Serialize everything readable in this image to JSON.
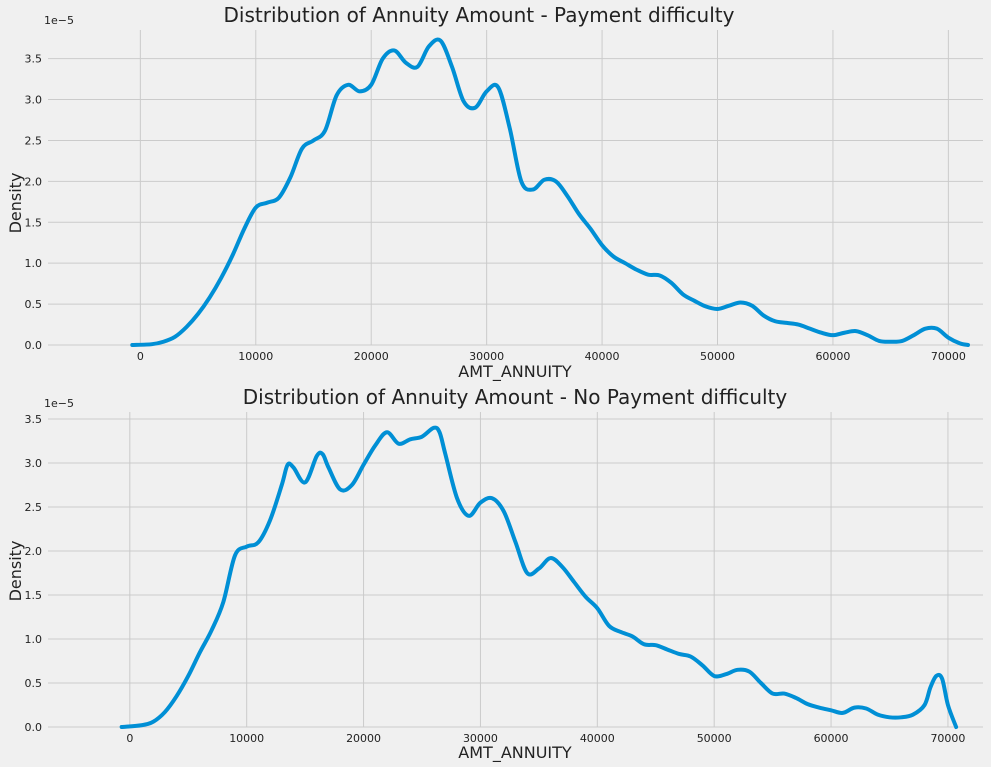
{
  "chart_data": [
    {
      "type": "line",
      "title": "Distribution of Annuity Amount - Payment difficulty",
      "xlabel": "AMT_ANNUITY",
      "ylabel": "Density",
      "y_offset_label": "1e−5",
      "xlim": [
        -8000,
        73000
      ],
      "ylim": [
        0,
        3.85
      ],
      "x_ticks": [
        0,
        10000,
        20000,
        30000,
        40000,
        50000,
        60000,
        70000
      ],
      "y_ticks": [
        0.0,
        0.5,
        1.0,
        1.5,
        2.0,
        2.5,
        3.0,
        3.5
      ],
      "grid": true,
      "line_color": "#008fd5",
      "series": [
        {
          "x": [
            -700,
            1000,
            2000,
            3000,
            4000,
            5000,
            6000,
            7000,
            8000,
            9000,
            10000,
            11000,
            12000,
            13000,
            14000,
            15000,
            16000,
            17000,
            18000,
            19000,
            20000,
            21000,
            22000,
            23000,
            24000,
            25000,
            26000,
            27000,
            28000,
            29000,
            30000,
            31000,
            32000,
            33000,
            34000,
            35000,
            36000,
            37000,
            38000,
            39000,
            40000,
            41000,
            42000,
            43000,
            44000,
            45000,
            46000,
            47000,
            48000,
            49000,
            50000,
            51000,
            52000,
            53000,
            54000,
            55000,
            56000,
            57000,
            58000,
            59000,
            60000,
            61000,
            62000,
            63000,
            64000,
            65000,
            66000,
            67000,
            68000,
            69000,
            70000,
            71000,
            71700
          ],
          "y": [
            0.0,
            0.01,
            0.04,
            0.1,
            0.22,
            0.38,
            0.58,
            0.82,
            1.1,
            1.42,
            1.68,
            1.74,
            1.8,
            2.05,
            2.4,
            2.5,
            2.62,
            3.05,
            3.18,
            3.1,
            3.18,
            3.5,
            3.6,
            3.45,
            3.4,
            3.65,
            3.72,
            3.4,
            2.98,
            2.9,
            3.1,
            3.15,
            2.65,
            2.0,
            1.9,
            2.02,
            2.0,
            1.82,
            1.6,
            1.42,
            1.22,
            1.08,
            1.0,
            0.92,
            0.86,
            0.85,
            0.76,
            0.62,
            0.54,
            0.47,
            0.44,
            0.48,
            0.52,
            0.48,
            0.36,
            0.29,
            0.27,
            0.25,
            0.2,
            0.15,
            0.12,
            0.15,
            0.17,
            0.12,
            0.05,
            0.04,
            0.05,
            0.12,
            0.2,
            0.2,
            0.09,
            0.02,
            0.0
          ]
        }
      ]
    },
    {
      "type": "line",
      "title": "Distribution of Annuity Amount - No Payment difficulty",
      "xlabel": "AMT_ANNUITY",
      "ylabel": "Density",
      "y_offset_label": "1e−5",
      "xlim": [
        -7000,
        73000
      ],
      "ylim": [
        0,
        3.58
      ],
      "x_ticks": [
        0,
        10000,
        20000,
        30000,
        40000,
        50000,
        60000,
        70000
      ],
      "y_ticks": [
        0.0,
        0.5,
        1.0,
        1.5,
        2.0,
        2.5,
        3.0,
        3.5
      ],
      "grid": true,
      "line_color": "#008fd5",
      "series": [
        {
          "x": [
            -700,
            1000,
            2000,
            3000,
            4000,
            5000,
            6000,
            7000,
            8000,
            9000,
            10000,
            11000,
            12000,
            13000,
            13500,
            14000,
            15000,
            16000,
            16500,
            17000,
            18000,
            19000,
            20000,
            21000,
            22000,
            23000,
            24000,
            25000,
            26000,
            26500,
            27000,
            28000,
            29000,
            30000,
            31000,
            32000,
            33000,
            34000,
            35000,
            36000,
            37000,
            38000,
            39000,
            40000,
            41000,
            42000,
            43000,
            44000,
            45000,
            46000,
            47000,
            48000,
            49000,
            50000,
            51000,
            52000,
            53000,
            54000,
            55000,
            56000,
            57000,
            58000,
            59000,
            60000,
            61000,
            62000,
            63000,
            64000,
            65000,
            66000,
            67000,
            68000,
            68500,
            69000,
            69500,
            70000,
            70700
          ],
          "y": [
            0.0,
            0.02,
            0.06,
            0.17,
            0.35,
            0.58,
            0.85,
            1.1,
            1.42,
            1.95,
            2.05,
            2.1,
            2.35,
            2.75,
            2.98,
            2.95,
            2.78,
            3.08,
            3.1,
            2.95,
            2.7,
            2.75,
            2.98,
            3.2,
            3.35,
            3.22,
            3.27,
            3.3,
            3.4,
            3.35,
            3.1,
            2.6,
            2.4,
            2.55,
            2.6,
            2.45,
            2.1,
            1.75,
            1.8,
            1.92,
            1.82,
            1.65,
            1.48,
            1.35,
            1.15,
            1.08,
            1.03,
            0.94,
            0.93,
            0.88,
            0.83,
            0.8,
            0.7,
            0.58,
            0.6,
            0.65,
            0.63,
            0.5,
            0.38,
            0.38,
            0.33,
            0.26,
            0.22,
            0.19,
            0.16,
            0.22,
            0.21,
            0.14,
            0.11,
            0.11,
            0.14,
            0.25,
            0.45,
            0.58,
            0.55,
            0.25,
            0.0
          ]
        }
      ]
    }
  ]
}
